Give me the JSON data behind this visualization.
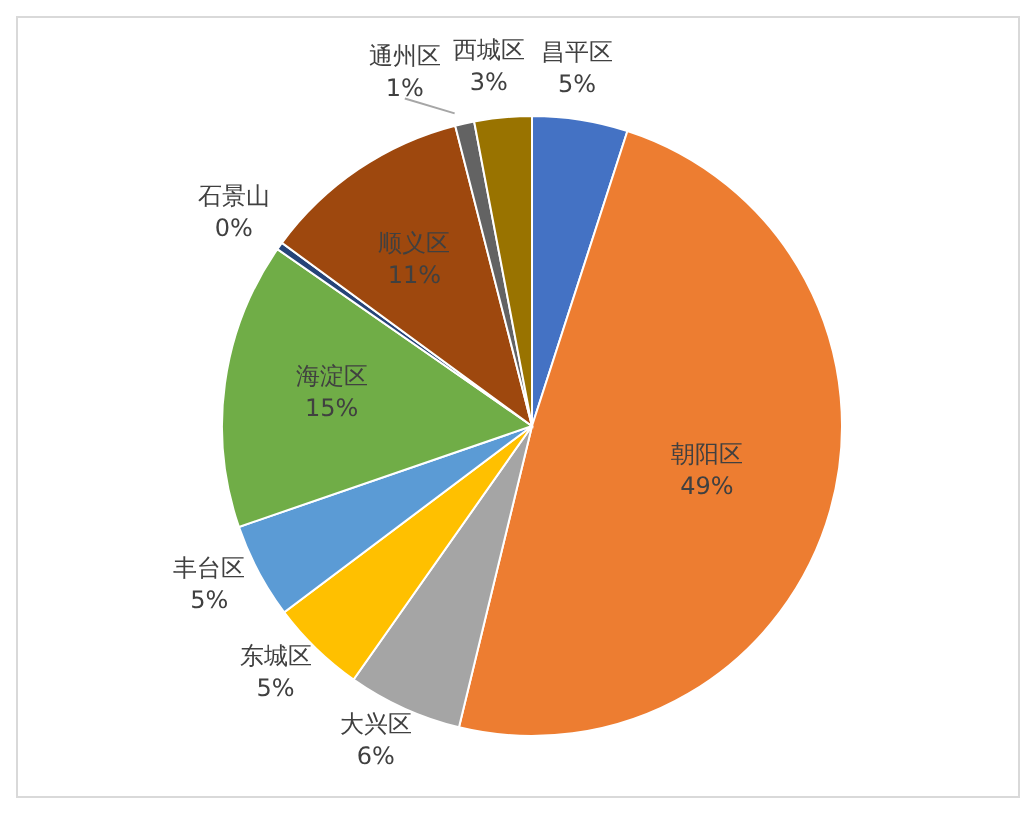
{
  "chart_data": {
    "type": "pie",
    "categories": [
      "昌平区",
      "朝阳区",
      "大兴区",
      "东城区",
      "丰台区",
      "海淀区",
      "石景山",
      "顺义区",
      "通州区",
      "西城区"
    ],
    "values": [
      5,
      49,
      6,
      5,
      5,
      15,
      0.4,
      11,
      1,
      3
    ],
    "value_labels": [
      "5%",
      "49%",
      "6%",
      "5%",
      "5%",
      "15%",
      "0%",
      "11%",
      "1%",
      "3%"
    ],
    "colors": [
      "#4472c4",
      "#ed7d31",
      "#a5a5a5",
      "#ffc000",
      "#5b9bd5",
      "#70ad47",
      "#264478",
      "#9e480e",
      "#636363",
      "#997300"
    ],
    "legend": false
  }
}
